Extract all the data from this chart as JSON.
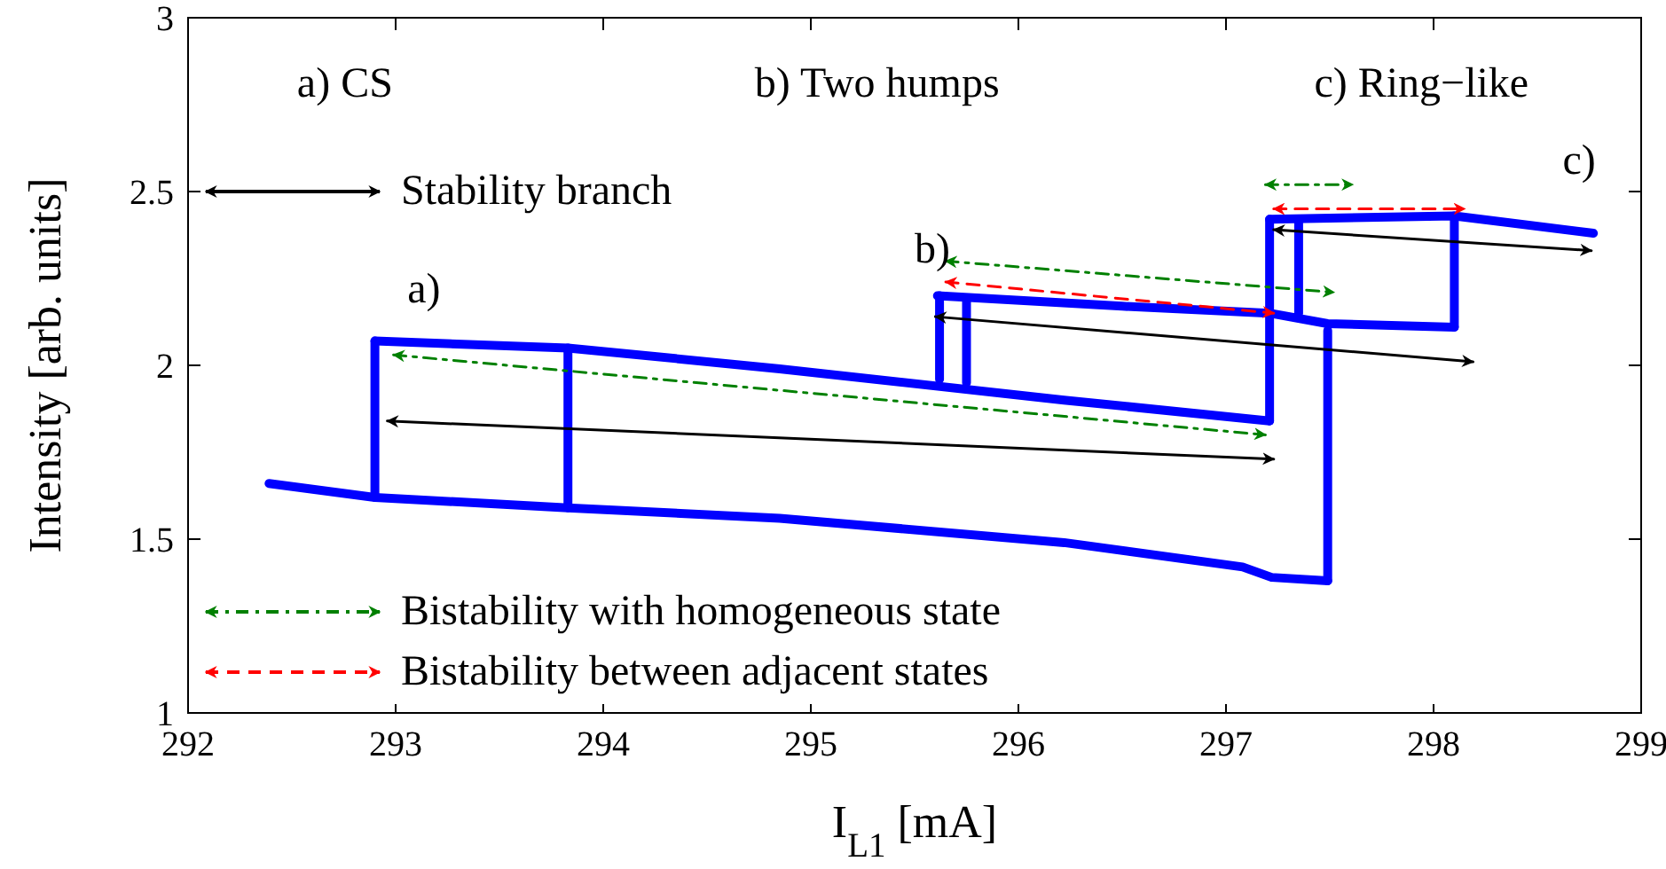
{
  "chart_data": {
    "type": "line",
    "xlabel": "I$_{L1}$ [mA]",
    "ylabel": "Intensity [arb. units]",
    "xlim": [
      292,
      299
    ],
    "xticks": [
      292,
      293,
      294,
      295,
      296,
      297,
      298,
      299
    ],
    "ylim": [
      1,
      3
    ],
    "yticks": [
      1,
      1.5,
      2,
      2.5,
      3
    ],
    "grid": false,
    "legend": "left",
    "marker": "none",
    "annotations": [
      "a) CS",
      "b) Two humps",
      "c) Ring−like",
      "a)",
      "b)",
      "c)"
    ],
    "series": [
      {
        "color": "#0000ff",
        "x": [
          292.39,
          292.9,
          293.83,
          294.85,
          296.22,
          297.08,
          297.22,
          297.49
        ],
        "values": [
          1.66,
          1.62,
          1.59,
          1.56,
          1.49,
          1.42,
          1.39,
          1.38
        ]
      },
      {
        "color": "#0000ff",
        "x": [
          292.9,
          293.83,
          294.85,
          296.22,
          297.21
        ],
        "values": [
          2.07,
          2.05,
          1.99,
          1.9,
          1.84
        ]
      },
      {
        "color": "#0000ff",
        "x": [
          295.61,
          296.5,
          297.21,
          297.49,
          298.1
        ],
        "values": [
          2.2,
          2.17,
          2.15,
          2.12,
          2.11
        ]
      },
      {
        "color": "#0000ff",
        "x": [
          297.21,
          298.1,
          298.77
        ],
        "values": [
          2.42,
          2.43,
          2.38
        ]
      },
      {
        "color": "#0000ff",
        "x": [
          292.9,
          292.9
        ],
        "values": [
          1.62,
          2.07
        ]
      },
      {
        "color": "#0000ff",
        "x": [
          293.83,
          293.83
        ],
        "values": [
          1.59,
          2.05
        ]
      },
      {
        "color": "#0000ff",
        "x": [
          295.62,
          295.62
        ],
        "values": [
          1.96,
          2.2
        ]
      },
      {
        "color": "#0000ff",
        "x": [
          295.75,
          295.75
        ],
        "values": [
          1.95,
          2.19
        ]
      },
      {
        "color": "#0000ff",
        "x": [
          297.21,
          297.21
        ],
        "values": [
          1.84,
          2.42
        ]
      },
      {
        "color": "#0000ff",
        "x": [
          297.35,
          297.35
        ],
        "values": [
          2.15,
          2.42
        ]
      },
      {
        "color": "#0000ff",
        "x": [
          297.49,
          297.49
        ],
        "values": [
          1.38,
          2.1
        ]
      },
      {
        "color": "#0000ff",
        "x": [
          298.1,
          298.1
        ],
        "values": [
          2.11,
          2.43
        ]
      },
      {
        "name": "Stability branch",
        "color": "#000000",
        "line_style": "solid",
        "x": [
          292.96,
          297.23
        ],
        "values": [
          1.84,
          1.73
        ]
      },
      {
        "color": "#000000",
        "line_style": "solid",
        "x": [
          295.6,
          298.19
        ],
        "values": [
          2.14,
          2.01
        ]
      },
      {
        "color": "#000000",
        "line_style": "solid",
        "x": [
          297.23,
          298.76
        ],
        "values": [
          2.39,
          2.33
        ]
      },
      {
        "name": "Bistability with homogeneous state",
        "color": "#008000",
        "line_style": "dashdot",
        "x": [
          292.99,
          297.19
        ],
        "values": [
          2.03,
          1.8
        ]
      },
      {
        "color": "#008000",
        "line_style": "dashdot",
        "x": [
          295.65,
          297.52
        ],
        "values": [
          2.3,
          2.21
        ]
      },
      {
        "color": "#008000",
        "line_style": "dashdot",
        "x": [
          297.19,
          297.61
        ],
        "values": [
          2.52,
          2.52
        ]
      },
      {
        "name": "Bistability between adjacent states",
        "color": "#ff0000",
        "line_style": "dashed",
        "x": [
          295.65,
          297.23
        ],
        "values": [
          2.24,
          2.15
        ]
      },
      {
        "color": "#ff0000",
        "line_style": "dashed",
        "x": [
          297.23,
          298.15
        ],
        "values": [
          2.45,
          2.45
        ]
      }
    ]
  }
}
